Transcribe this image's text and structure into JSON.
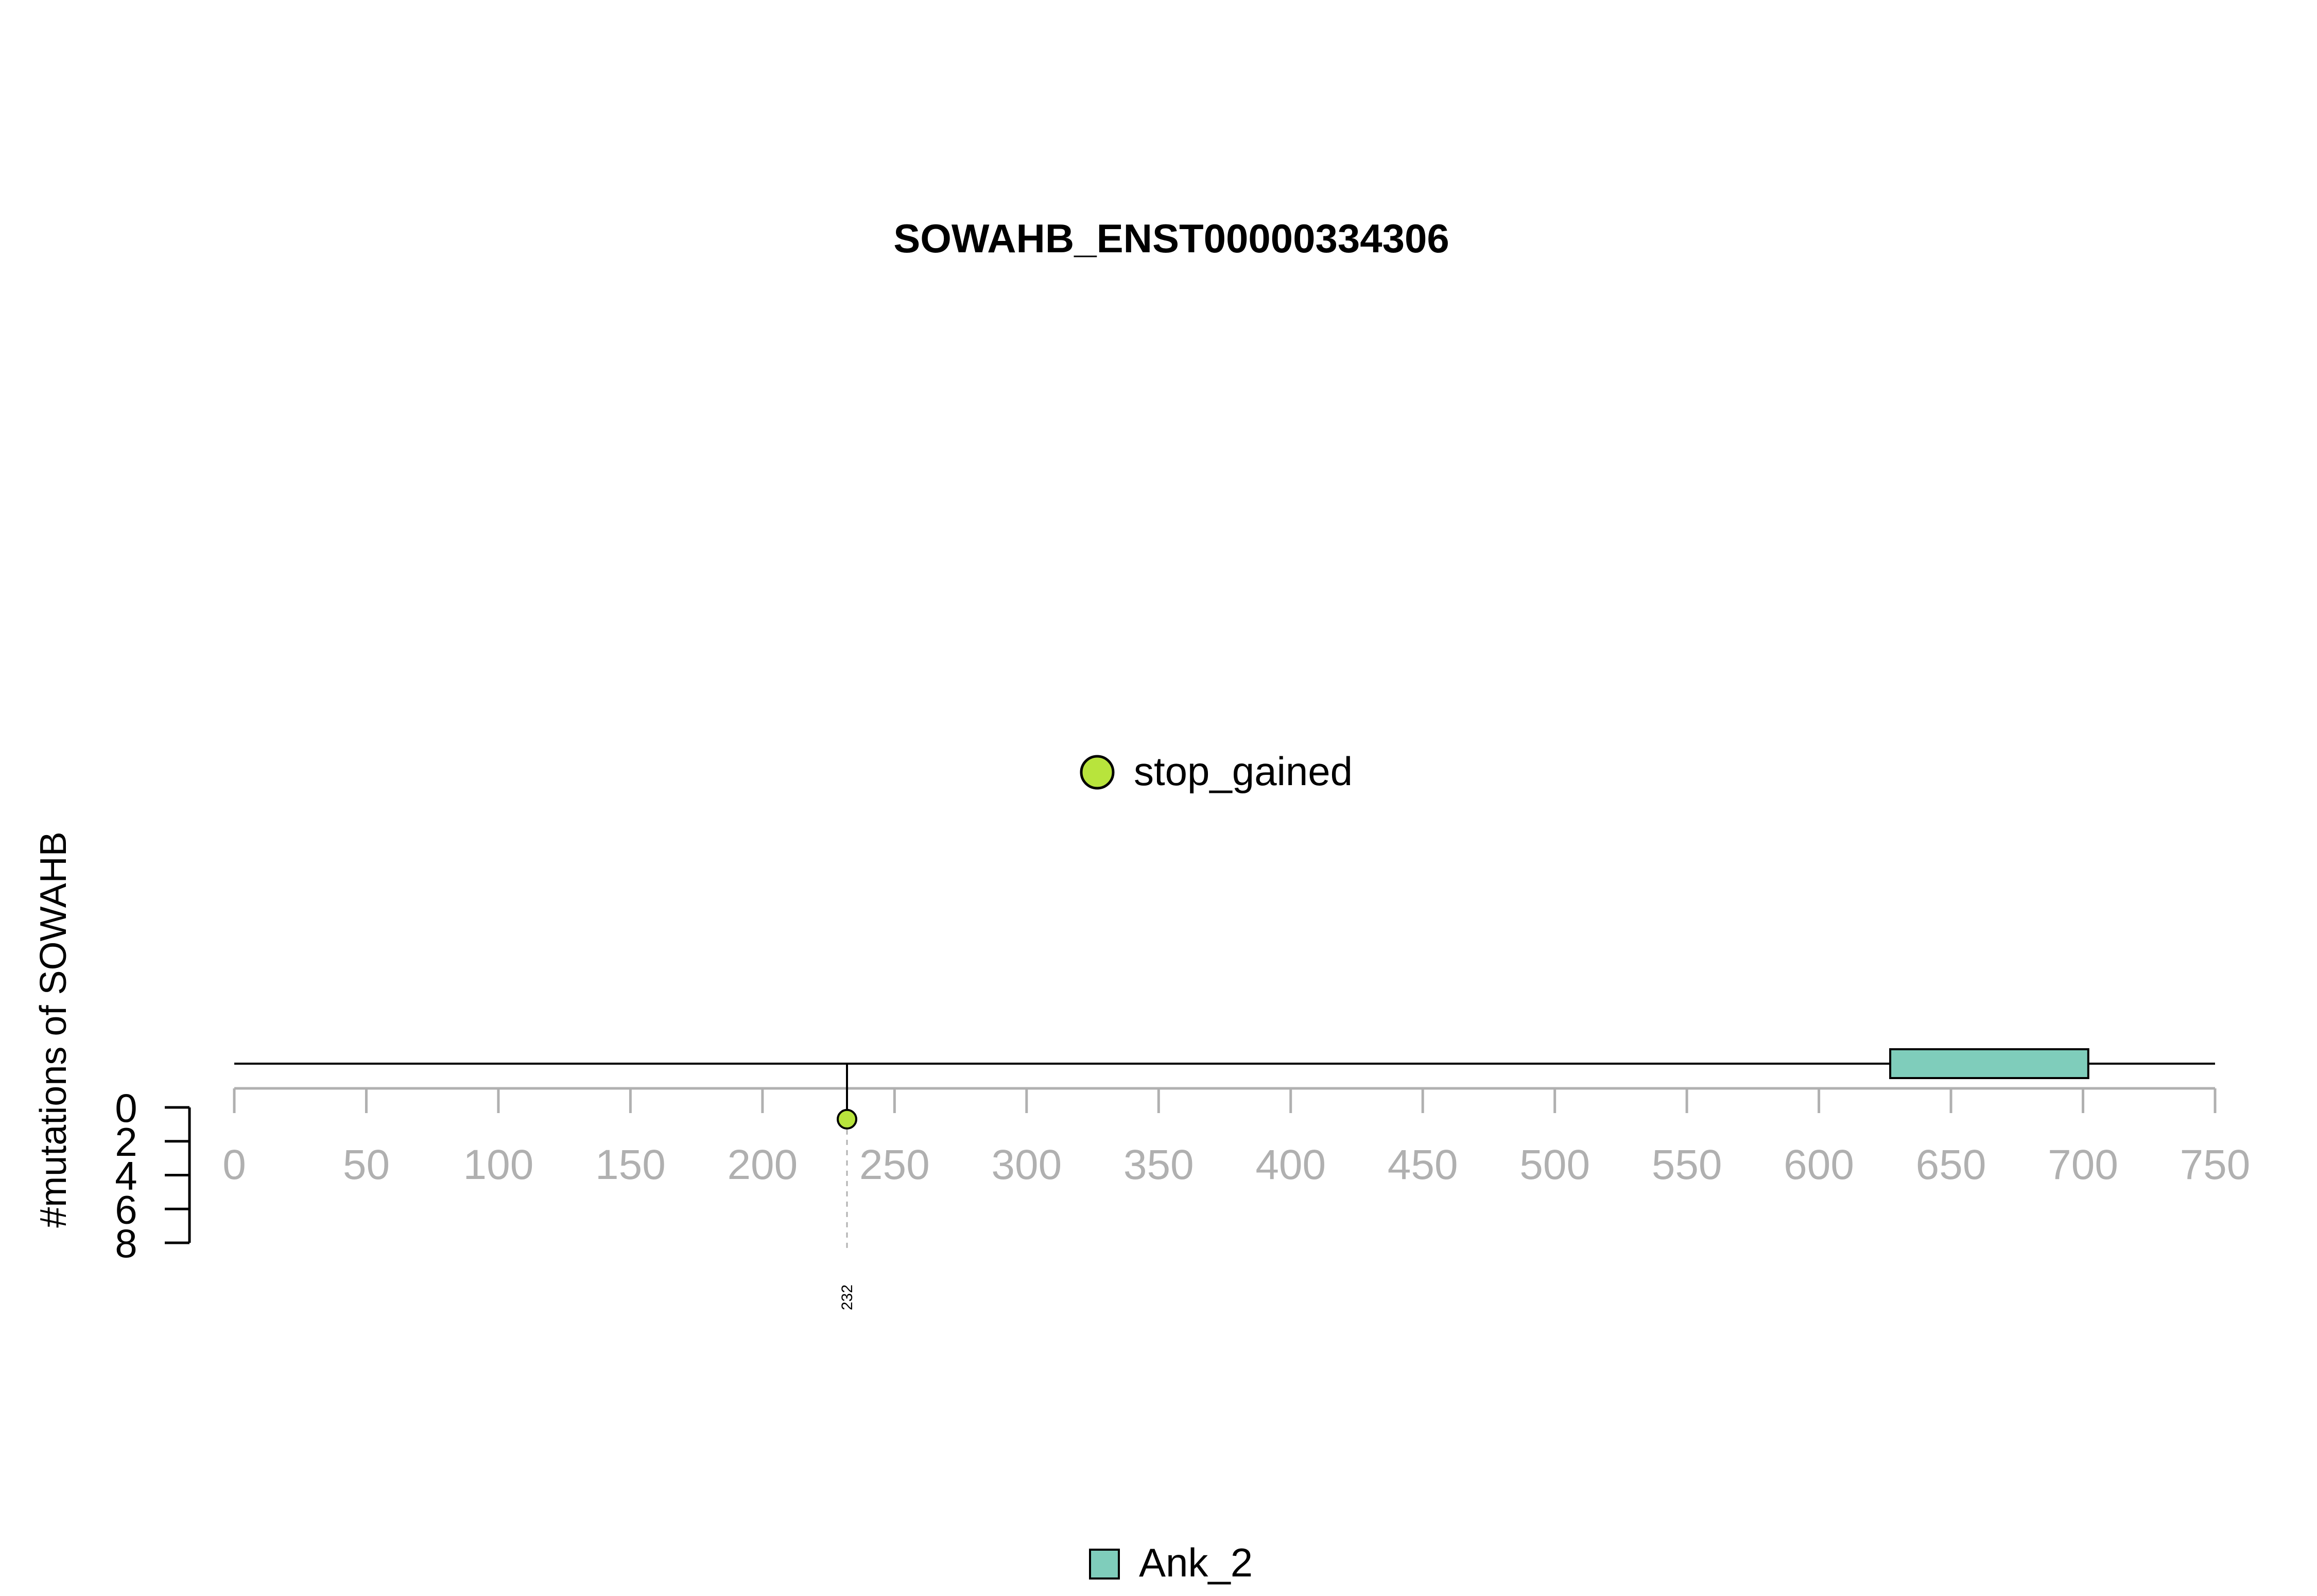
{
  "chart_data": {
    "type": "lollipop",
    "title": "SOWAHB_ENST00000334306",
    "ylabel": "#mutations of SOWAHB",
    "x_axis": {
      "min": 0,
      "max": 750,
      "ticks": [
        0,
        50,
        100,
        150,
        200,
        250,
        300,
        350,
        400,
        450,
        500,
        550,
        600,
        650,
        700,
        750
      ],
      "tick_labels": [
        "0",
        "50",
        "100",
        "150",
        "200",
        "250",
        "300",
        "350",
        "400",
        "450",
        "500",
        "550",
        "600",
        "650",
        "700",
        "750"
      ],
      "color": "#b0b0b0"
    },
    "y_axis": {
      "min": 0,
      "max": 8,
      "ticks": [
        0,
        2,
        4,
        6,
        8
      ],
      "tick_labels": [
        "0",
        "2",
        "4",
        "6",
        "8"
      ]
    },
    "protein_length": 750,
    "domains": [
      {
        "name": "Ank_2",
        "start": 627,
        "end": 702,
        "color": "#7fcdbb"
      }
    ],
    "mutations": [
      {
        "position": 232,
        "position_label": "232",
        "count": 1,
        "type": "stop_gained",
        "color": "#b8e43c"
      }
    ],
    "legend_mutation_types": [
      {
        "label": "stop_gained",
        "color": "#b8e43c"
      }
    ],
    "legend_domains": [
      {
        "label": "Ank_2",
        "color": "#7fcdbb"
      }
    ]
  }
}
